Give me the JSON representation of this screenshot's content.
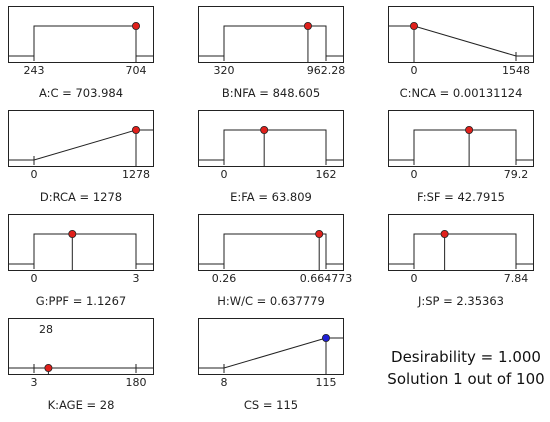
{
  "chart_data": {
    "type": "optimization_ramps",
    "panels": [
      {
        "id": "A",
        "label": "A:C = 703.984",
        "factor": "A:C",
        "low": 243,
        "high": 704,
        "value": 703.984,
        "low_label": "243",
        "high_label": "704",
        "kind": "range",
        "point_color": "#e0201b"
      },
      {
        "id": "B",
        "label": "B:NFA = 848.605",
        "factor": "B:NFA",
        "low": 320,
        "high": 962.28,
        "value": 848.605,
        "low_label": "320",
        "high_label": "962.28",
        "kind": "range",
        "point_color": "#e0201b"
      },
      {
        "id": "C",
        "label": "C:NCA = 0.00131124",
        "factor": "C:NCA",
        "low": 0,
        "high": 1548,
        "value": 0.00131124,
        "low_label": "0",
        "high_label": "1548",
        "kind": "minimize",
        "point_color": "#e0201b"
      },
      {
        "id": "D",
        "label": "D:RCA = 1278",
        "factor": "D:RCA",
        "low": 0,
        "high": 1278,
        "value": 1278,
        "low_label": "0",
        "high_label": "1278",
        "kind": "maximize",
        "point_color": "#e0201b"
      },
      {
        "id": "E",
        "label": "E:FA = 63.809",
        "factor": "E:FA",
        "low": 0,
        "high": 162,
        "value": 63.809,
        "low_label": "0",
        "high_label": "162",
        "kind": "range",
        "point_color": "#e0201b"
      },
      {
        "id": "F",
        "label": "F:SF = 42.7915",
        "factor": "F:SF",
        "low": 0,
        "high": 79.2,
        "value": 42.7915,
        "low_label": "0",
        "high_label": "79.2",
        "kind": "range",
        "point_color": "#e0201b"
      },
      {
        "id": "G",
        "label": "G:PPF = 1.1267",
        "factor": "G:PPF",
        "low": 0,
        "high": 3,
        "value": 1.1267,
        "low_label": "0",
        "high_label": "3",
        "kind": "range",
        "point_color": "#e0201b"
      },
      {
        "id": "H",
        "label": "H:W/C = 0.637779",
        "factor": "H:W/C",
        "low": 0.26,
        "high": 0.664773,
        "value": 0.637779,
        "low_label": "0.26",
        "high_label": "0.664773",
        "kind": "range",
        "point_color": "#e0201b"
      },
      {
        "id": "J",
        "label": "J:SP = 2.35363",
        "factor": "J:SP",
        "low": 0,
        "high": 7.84,
        "value": 2.35363,
        "low_label": "0",
        "high_label": "7.84",
        "kind": "range",
        "point_color": "#e0201b"
      },
      {
        "id": "K",
        "label": "K:AGE = 28",
        "factor": "K:AGE",
        "low": 3,
        "high": 180,
        "value": 28,
        "target": 28,
        "target_label": "28",
        "low_label": "3",
        "high_label": "180",
        "kind": "target",
        "point_color": "#e0201b"
      },
      {
        "id": "CS",
        "label": "CS = 115",
        "factor": "CS",
        "low": 8,
        "high": 115,
        "value": 115,
        "low_label": "8",
        "high_label": "115",
        "kind": "maximize_response",
        "point_color": "#1f1fd6"
      }
    ]
  },
  "summary": {
    "desirability": "Desirability = 1.000",
    "solution": "Solution 1 out of 100"
  }
}
